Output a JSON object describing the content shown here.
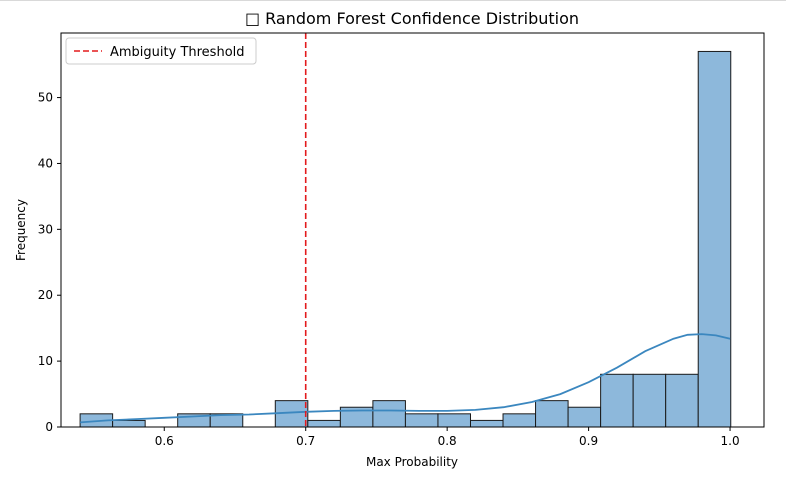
{
  "chart_data": {
    "type": "bar",
    "title": "□ Random Forest Confidence Distribution",
    "xlabel": "Max Probability",
    "ylabel": "Frequency",
    "xlim": [
      0.527,
      1.024
    ],
    "ylim": [
      0,
      59.8
    ],
    "x_ticks": [
      {
        "value": 0.6,
        "label": "0.6"
      },
      {
        "value": 0.7,
        "label": "0.7"
      },
      {
        "value": 0.8,
        "label": "0.8"
      },
      {
        "value": 0.9,
        "label": "0.9"
      },
      {
        "value": 1.0,
        "label": "1.0"
      }
    ],
    "y_ticks": [
      {
        "value": 0,
        "label": "0"
      },
      {
        "value": 10,
        "label": "10"
      },
      {
        "value": 20,
        "label": "20"
      },
      {
        "value": 30,
        "label": "30"
      },
      {
        "value": 40,
        "label": "40"
      },
      {
        "value": 50,
        "label": "50"
      }
    ],
    "bins": [
      {
        "x0": 0.5405,
        "x1": 0.5635,
        "count": 2
      },
      {
        "x0": 0.5635,
        "x1": 0.5865,
        "count": 1
      },
      {
        "x0": 0.5865,
        "x1": 0.6095,
        "count": 0
      },
      {
        "x0": 0.6095,
        "x1": 0.6325,
        "count": 2
      },
      {
        "x0": 0.6325,
        "x1": 0.6555,
        "count": 2
      },
      {
        "x0": 0.6555,
        "x1": 0.6785,
        "count": 0
      },
      {
        "x0": 0.6785,
        "x1": 0.7015,
        "count": 4
      },
      {
        "x0": 0.7015,
        "x1": 0.7245,
        "count": 1
      },
      {
        "x0": 0.7245,
        "x1": 0.7475,
        "count": 3
      },
      {
        "x0": 0.7475,
        "x1": 0.7705,
        "count": 4
      },
      {
        "x0": 0.7705,
        "x1": 0.7935,
        "count": 2
      },
      {
        "x0": 0.7935,
        "x1": 0.8165,
        "count": 2
      },
      {
        "x0": 0.8165,
        "x1": 0.8395,
        "count": 1
      },
      {
        "x0": 0.8395,
        "x1": 0.8625,
        "count": 2
      },
      {
        "x0": 0.8625,
        "x1": 0.8855,
        "count": 4
      },
      {
        "x0": 0.8855,
        "x1": 0.9085,
        "count": 3
      },
      {
        "x0": 0.9085,
        "x1": 0.9315,
        "count": 8
      },
      {
        "x0": 0.9315,
        "x1": 0.9545,
        "count": 8
      },
      {
        "x0": 0.9545,
        "x1": 0.9775,
        "count": 8
      },
      {
        "x0": 0.9775,
        "x1": 1.0005,
        "count": 57
      }
    ],
    "kde": {
      "x": [
        0.5405,
        0.56,
        0.58,
        0.6,
        0.62,
        0.64,
        0.66,
        0.68,
        0.7,
        0.72,
        0.74,
        0.76,
        0.78,
        0.8,
        0.82,
        0.84,
        0.86,
        0.88,
        0.9,
        0.92,
        0.94,
        0.96,
        0.97,
        0.98,
        0.99,
        1.0
      ],
      "y": [
        0.7,
        1.0,
        1.2,
        1.4,
        1.6,
        1.8,
        1.9,
        2.1,
        2.3,
        2.45,
        2.5,
        2.5,
        2.45,
        2.45,
        2.6,
        3.0,
        3.8,
        5.0,
        6.8,
        9.0,
        11.5,
        13.4,
        14.0,
        14.1,
        13.9,
        13.4
      ]
    },
    "threshold": {
      "value": 0.7,
      "label": "Ambiguity Threshold"
    },
    "legend_position": "top-left",
    "grid": false,
    "colors": {
      "bar_fill": "#8db8db",
      "bar_edge": "#1a1a1a",
      "kde_line": "#3b87bf",
      "threshold_line": "#e31a1c"
    }
  }
}
